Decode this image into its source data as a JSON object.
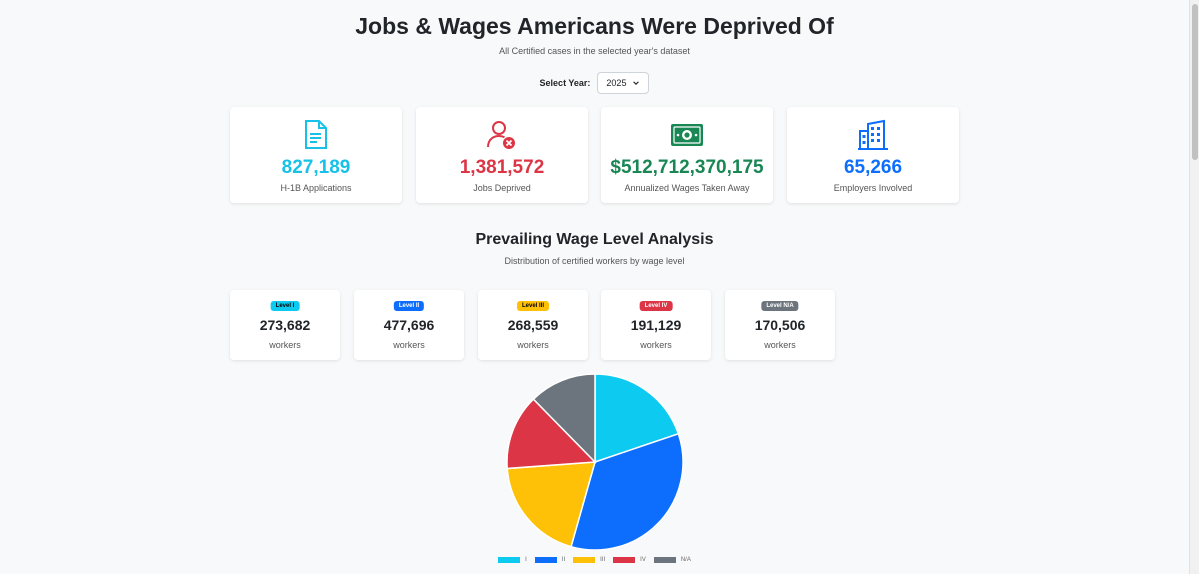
{
  "header": {
    "title": "Jobs & Wages Americans Were Deprived Of",
    "subtitle": "All Certified cases in the selected year's dataset"
  },
  "year_select": {
    "label": "Select Year:",
    "value": "2025"
  },
  "stats": [
    {
      "value": "827,189",
      "label": "H-1B Applications",
      "color": "#17c1e8",
      "icon": "document-icon"
    },
    {
      "value": "1,381,572",
      "label": "Jobs Deprived",
      "color": "#dc3545",
      "icon": "user-remove-icon"
    },
    {
      "value": "$512,712,370,175",
      "label": "Annualized Wages Taken Away",
      "color": "#198754",
      "icon": "cash-icon"
    },
    {
      "value": "65,266",
      "label": "Employers Involved",
      "color": "#0d6efd",
      "icon": "building-icon"
    }
  ],
  "wage_section": {
    "title": "Prevailing Wage Level Analysis",
    "subtitle": "Distribution of certified workers by wage level"
  },
  "levels": [
    {
      "badge": "Level I",
      "count": "273,682",
      "unit": "workers",
      "color": "#0dcaf0",
      "text_color": "#000000"
    },
    {
      "badge": "Level II",
      "count": "477,696",
      "unit": "workers",
      "color": "#0d6efd",
      "text_color": "#ffffff"
    },
    {
      "badge": "Level III",
      "count": "268,559",
      "unit": "workers",
      "color": "#ffc107",
      "text_color": "#000000"
    },
    {
      "badge": "Level IV",
      "count": "191,129",
      "unit": "workers",
      "color": "#dc3545",
      "text_color": "#ffffff"
    },
    {
      "badge": "Level N/A",
      "count": "170,506",
      "unit": "workers",
      "color": "#6c757d",
      "text_color": "#ffffff"
    }
  ],
  "chart_data": {
    "type": "pie",
    "categories": [
      "I",
      "II",
      "III",
      "IV",
      "N/A"
    ],
    "values": [
      273682,
      477696,
      268559,
      191129,
      170506
    ],
    "colors": [
      "#0dcaf0",
      "#0d6efd",
      "#ffc107",
      "#dc3545",
      "#6c757d"
    ],
    "legend_position": "bottom"
  }
}
